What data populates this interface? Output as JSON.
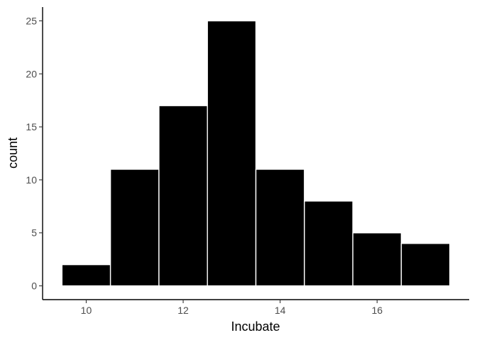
{
  "chart_data": {
    "type": "bar",
    "title": "",
    "xlabel": "Incubate",
    "ylabel": "count",
    "bins": [
      {
        "x0": 9.5,
        "x1": 10.5,
        "count": 2
      },
      {
        "x0": 10.5,
        "x1": 11.5,
        "count": 11
      },
      {
        "x0": 11.5,
        "x1": 12.5,
        "count": 17
      },
      {
        "x0": 12.5,
        "x1": 13.5,
        "count": 25
      },
      {
        "x0": 13.5,
        "x1": 14.5,
        "count": 11
      },
      {
        "x0": 14.5,
        "x1": 15.5,
        "count": 8
      },
      {
        "x0": 15.5,
        "x1": 16.5,
        "count": 5
      },
      {
        "x0": 16.5,
        "x1": 17.5,
        "count": 4
      }
    ],
    "xticks": [
      10,
      12,
      14,
      16
    ],
    "yticks": [
      0,
      5,
      10,
      15,
      20,
      25
    ],
    "xlim": [
      9.1,
      17.9
    ],
    "ylim": [
      -1.3,
      26.3
    ],
    "grid": false,
    "bar_fill": "#000000",
    "bar_outline": "#ffffff",
    "axis_color": "#000000",
    "tick_label_color": "#4d4d4d"
  }
}
